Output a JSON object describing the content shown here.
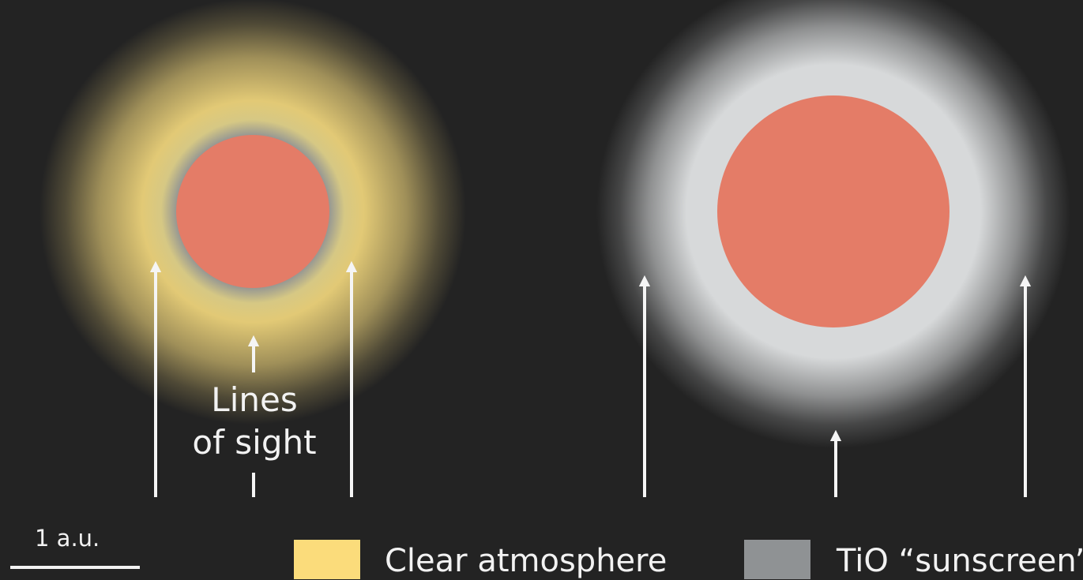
{
  "labels": {
    "lines_of_sight_line1": "Lines",
    "lines_of_sight_line2": "of sight",
    "scale": "1 a.u."
  },
  "legend": [
    {
      "label": "Clear atmosphere",
      "color": "#fbdc7b"
    },
    {
      "label": "TiO “sunscreen”",
      "color": "#8f9294"
    }
  ],
  "colors": {
    "background": "#232323",
    "star_surface": "#e47c67",
    "arrow": "#f5f5f5",
    "glow_left_outer": "#ecd27a",
    "glow_left_inner": "#8f9294",
    "glow_right": "#d7d9da"
  }
}
